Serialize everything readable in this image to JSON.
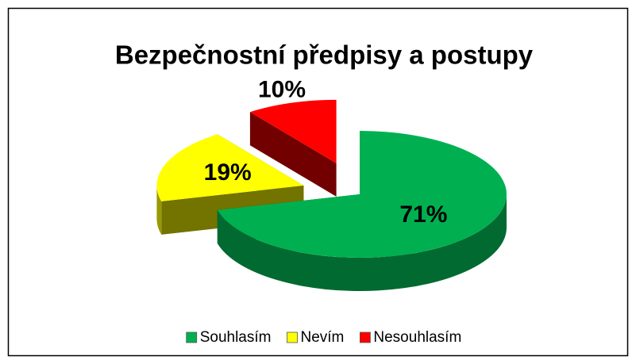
{
  "chart_data": {
    "type": "pie",
    "title": "Bezpečnostní předpisy a postupy",
    "categories": [
      "Souhlasím",
      "Nevím",
      "Nesouhlasím"
    ],
    "values": [
      71,
      19,
      10
    ],
    "value_labels": [
      "71%",
      "19%",
      "10%"
    ],
    "colors": [
      "#00b050",
      "#ffff00",
      "#ff0000"
    ],
    "legend": "bottom"
  }
}
